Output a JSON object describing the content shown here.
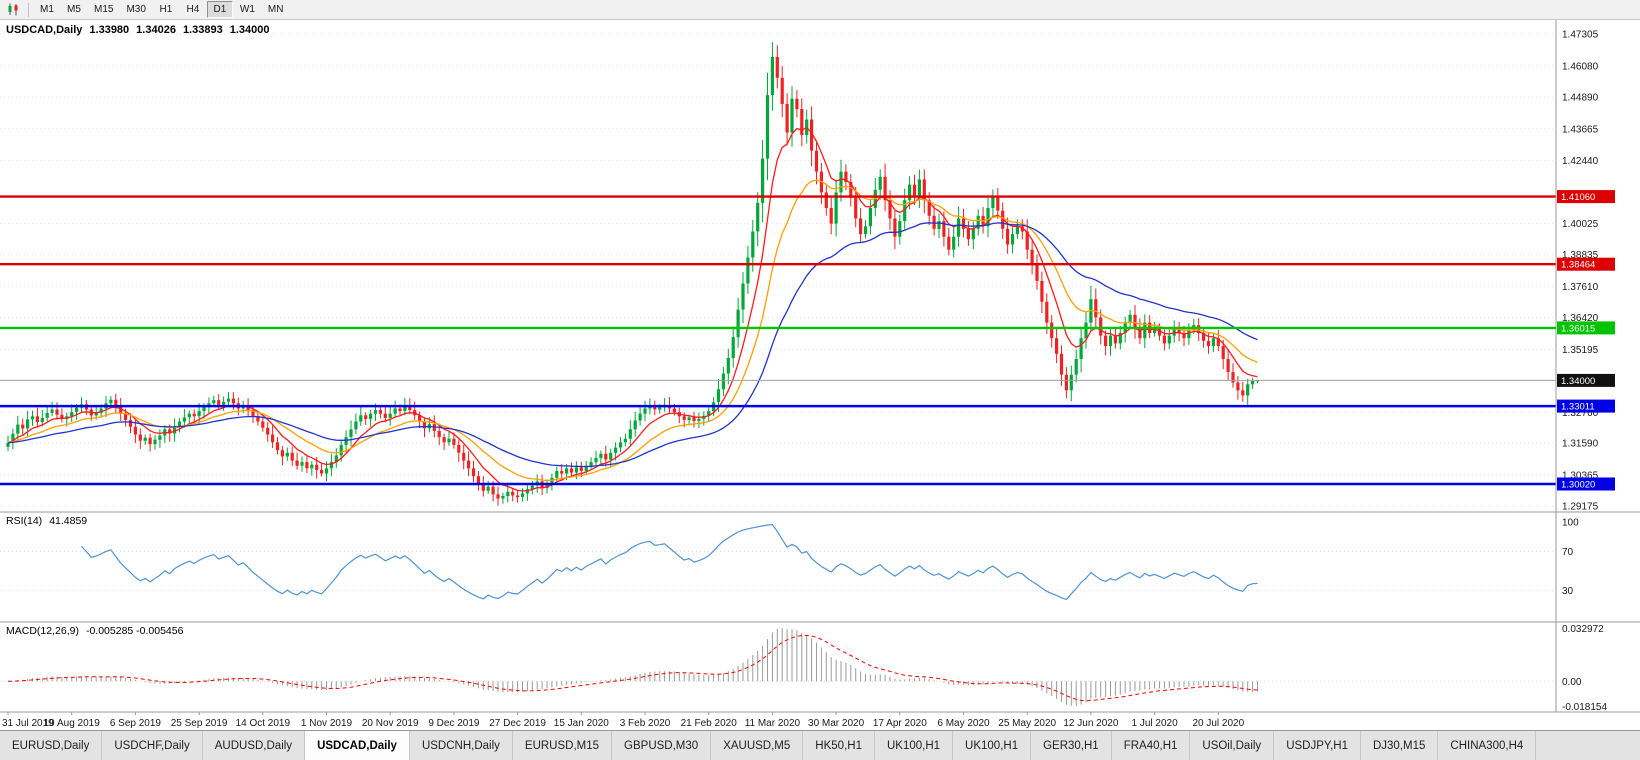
{
  "toolbar": {
    "timeframes": [
      {
        "label": "M1"
      },
      {
        "label": "M5"
      },
      {
        "label": "M15"
      },
      {
        "label": "M30"
      },
      {
        "label": "H1"
      },
      {
        "label": "H4"
      },
      {
        "label": "D1",
        "active": true
      },
      {
        "label": "W1"
      },
      {
        "label": "MN"
      }
    ]
  },
  "chart_header": {
    "symbol": "USDCAD,Daily",
    "open": "1.33980",
    "high": "1.34026",
    "low": "1.33893",
    "close": "1.34000"
  },
  "indicators": {
    "rsi": {
      "label": "RSI(14)",
      "value": "41.4859"
    },
    "macd": {
      "label": "MACD(12,26,9)",
      "value": "-0.005285 -0.005456"
    }
  },
  "chart_data": {
    "type": "candlestick",
    "symbol": "USDCAD",
    "timeframe": "Daily",
    "colors": {
      "up": "#00a83a",
      "down": "#ee2222",
      "ma_fast": "#ff1a1a",
      "ma_mid": "#ff9f00",
      "ma_slow": "#2233cc",
      "rsi": "#4f94d4",
      "macd_hist": "#9a9a9a",
      "macd_signal": "#ff0000"
    },
    "price_axis": {
      "max": 1.47305,
      "min": 1.29175,
      "labels": [
        "1.47305",
        "1.46080",
        "1.44890",
        "1.43665",
        "1.42440",
        "1.40025",
        "1.38835",
        "1.37610",
        "1.36420",
        "1.35195",
        "1.32760",
        "1.31590",
        "1.30365",
        "1.29175"
      ]
    },
    "hlines": [
      {
        "price": 1.4106,
        "label": "1.41060",
        "color": "#dd0000",
        "kind": "resistance"
      },
      {
        "price": 1.38464,
        "label": "1.38464",
        "color": "#dd0000",
        "kind": "resistance"
      },
      {
        "price": 1.36015,
        "label": "1.36015",
        "color": "#00c400",
        "kind": "level"
      },
      {
        "price": 1.34,
        "label": "1.34000",
        "color": "#111111",
        "kind": "current"
      },
      {
        "price": 1.33011,
        "label": "1.33011",
        "color": "#0000e6",
        "kind": "support"
      },
      {
        "price": 1.3002,
        "label": "1.30020",
        "color": "#0000e6",
        "kind": "support"
      }
    ],
    "ma_periods": [
      {
        "period": 8,
        "color_key": "ma_fast"
      },
      {
        "period": 18,
        "color_key": "ma_mid"
      },
      {
        "period": 40,
        "color_key": "ma_slow"
      }
    ],
    "rsi": {
      "period": 14,
      "levels": [
        "100",
        "70",
        "30"
      ],
      "current": 41.4859
    },
    "macd": {
      "fast": 12,
      "slow": 26,
      "signal": 9,
      "axis_labels": [
        "0.032972",
        "0.00",
        "-0.018154"
      ]
    },
    "dates": [
      "31 Jul 2019",
      "19 Aug 2019",
      "6 Sep 2019",
      "25 Sep 2019",
      "14 Oct 2019",
      "1 Nov 2019",
      "20 Nov 2019",
      "9 Dec 2019",
      "27 Dec 2019",
      "15 Jan 2020",
      "3 Feb 2020",
      "21 Feb 2020",
      "11 Mar 2020",
      "30 Mar 2020",
      "17 Apr 2020",
      "6 May 2020",
      "25 May 2020",
      "12 Jun 2020",
      "1 Jul 2020",
      "20 Jul 2020"
    ],
    "last": {
      "open": 1.3398,
      "high": 1.34026,
      "low": 1.33893,
      "close": 1.34
    },
    "closes": [
      1.316,
      1.3195,
      1.323,
      1.3215,
      1.325,
      1.3262,
      1.324,
      1.3256,
      1.3275,
      1.3288,
      1.3268,
      1.3252,
      1.3262,
      1.3278,
      1.3295,
      1.3308,
      1.3288,
      1.3265,
      1.3275,
      1.3292,
      1.3312,
      1.3326,
      1.33,
      1.3272,
      1.3248,
      1.3222,
      1.3192,
      1.3168,
      1.318,
      1.3155,
      1.3172,
      1.3188,
      1.3212,
      1.3196,
      1.3224,
      1.3242,
      1.3258,
      1.3272,
      1.3262,
      1.3282,
      1.3298,
      1.3312,
      1.3324,
      1.3306,
      1.3318,
      1.333,
      1.3312,
      1.3292,
      1.3306,
      1.3286,
      1.3262,
      1.3242,
      1.3218,
      1.3192,
      1.3162,
      1.3132,
      1.3108,
      1.3122,
      1.3092,
      1.3072,
      1.3086,
      1.3062,
      1.3076,
      1.3056,
      1.3042,
      1.3062,
      1.3086,
      1.3112,
      1.3152,
      1.3182,
      1.3212,
      1.3242,
      1.3266,
      1.3252,
      1.3272,
      1.3286,
      1.3272,
      1.3256,
      1.3272,
      1.3292,
      1.3282,
      1.3302,
      1.3286,
      1.3266,
      1.3242,
      1.3216,
      1.3232,
      1.3206,
      1.3182,
      1.3162,
      1.3176,
      1.3152,
      1.3122,
      1.3092,
      1.3062,
      1.3032,
      1.3002,
      1.2976,
      1.2992,
      1.2962,
      1.2946,
      1.2956,
      1.2972,
      1.2958,
      1.2952,
      1.2966,
      1.2982,
      1.2996,
      1.3012,
      1.2986,
      1.3002,
      1.3026,
      1.3052,
      1.3042,
      1.3062,
      1.3046,
      1.3066,
      1.3052,
      1.3072,
      1.3086,
      1.3102,
      1.3118,
      1.3096,
      1.3122,
      1.3142,
      1.3162,
      1.3176,
      1.3212,
      1.3246,
      1.3272,
      1.3292,
      1.3302,
      1.3288,
      1.3296,
      1.3306,
      1.3292,
      1.3278,
      1.3262,
      1.3248,
      1.3258,
      1.3244,
      1.3252,
      1.3264,
      1.3282,
      1.3316,
      1.3366,
      1.3426,
      1.3486,
      1.3566,
      1.3672,
      1.3772,
      1.3872,
      1.3972,
      1.4082,
      1.4252,
      1.4496,
      1.4642,
      1.4562,
      1.4462,
      1.4352,
      1.4482,
      1.4442,
      1.4342,
      1.4402,
      1.4282,
      1.4202,
      1.4122,
      1.4062,
      1.4002,
      1.4122,
      1.4202,
      1.4162,
      1.4102,
      1.4022,
      1.3962,
      1.3992,
      1.4062,
      1.4132,
      1.4182,
      1.4092,
      1.4022,
      1.3952,
      1.4012,
      1.4092,
      1.4152,
      1.4102,
      1.4172,
      1.4092,
      1.4032,
      1.3982,
      1.4012,
      1.3952,
      1.3902,
      1.3952,
      1.4022,
      1.3982,
      1.3942,
      1.3982,
      1.4032,
      1.3992,
      1.4062,
      1.4102,
      1.4052,
      1.3982,
      1.3922,
      1.3962,
      1.3992,
      1.3972,
      1.3902,
      1.3842,
      1.3782,
      1.3702,
      1.3622,
      1.3562,
      1.3502,
      1.3422,
      1.3362,
      1.3422,
      1.3482,
      1.3562,
      1.3622,
      1.3712,
      1.3642,
      1.3572,
      1.3532,
      1.3572,
      1.3542,
      1.3582,
      1.3622,
      1.3652,
      1.3602,
      1.3562,
      1.3622,
      1.3582,
      1.3602,
      1.3572,
      1.3542,
      1.3572,
      1.3602,
      1.3582,
      1.3562,
      1.3592,
      1.3612,
      1.3582,
      1.3552,
      1.3532,
      1.3562,
      1.3532,
      1.3482,
      1.3432,
      1.3392,
      1.3362,
      1.3342,
      1.3385,
      1.3398,
      1.34
    ]
  },
  "tabs": [
    {
      "label": "EURUSD,Daily"
    },
    {
      "label": "USDCHF,Daily"
    },
    {
      "label": "AUDUSD,Daily"
    },
    {
      "label": "USDCAD,Daily",
      "active": true
    },
    {
      "label": "USDCNH,Daily"
    },
    {
      "label": "EURUSD,M15"
    },
    {
      "label": "GBPUSD,M30"
    },
    {
      "label": "XAUUSD,M5"
    },
    {
      "label": "HK50,H1"
    },
    {
      "label": "UK100,H1"
    },
    {
      "label": "UK100,H1"
    },
    {
      "label": "GER30,H1"
    },
    {
      "label": "FRA40,H1"
    },
    {
      "label": "USOil,Daily"
    },
    {
      "label": "USDJPY,H1"
    },
    {
      "label": "DJ30,M15"
    },
    {
      "label": "CHINA300,H4"
    }
  ]
}
